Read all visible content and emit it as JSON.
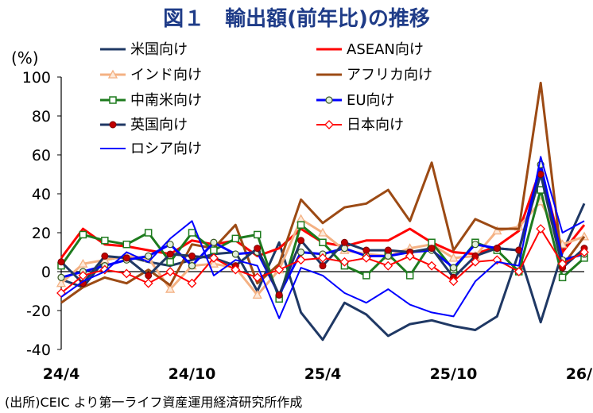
{
  "chart_data": {
    "type": "line",
    "title": "図１　輸出額(前年比)の推移",
    "ylabel": "(%)",
    "source": "(出所)CEIC より第一ライフ資産運用経済研究所作成",
    "ylim": [
      -40,
      100
    ],
    "yticks": [
      "-40",
      "-20",
      "0",
      "20",
      "40",
      "60",
      "80",
      "100"
    ],
    "grid": false,
    "legend_position": "top-left, three columns",
    "x": [
      "24/4",
      "24/5",
      "24/6",
      "24/7",
      "24/8",
      "24/9",
      "24/10",
      "24/11",
      "24/12",
      "25/1",
      "25/2",
      "25/3",
      "25/4",
      "25/5",
      "25/6",
      "25/7",
      "25/8",
      "25/9",
      "25/10",
      "25/11",
      "25/12",
      "26/1",
      "26/2",
      "26/3",
      "26/4"
    ],
    "x_ticks": [
      {
        "index": 0,
        "label": "24/4"
      },
      {
        "index": 6,
        "label": "24/10"
      },
      {
        "index": 12,
        "label": "25/4"
      },
      {
        "index": 18,
        "label": "25/10"
      },
      {
        "index": 24,
        "label": "26/4"
      }
    ],
    "series": [
      {
        "name": "米国向け",
        "color": "#1f3864",
        "marker": "none",
        "width": 3,
        "values": [
          -4,
          -8,
          6,
          8,
          5,
          3,
          6,
          9,
          10,
          -10,
          15,
          -21,
          -35,
          -16,
          -22,
          -33,
          -27,
          -25,
          -28,
          -30,
          -23,
          10,
          -26,
          10,
          35
        ]
      },
      {
        "name": "ASEAN向け",
        "color": "#ff0000",
        "marker": "none",
        "width": 3,
        "values": [
          7,
          22,
          14,
          13,
          11,
          9,
          16,
          14,
          16,
          8,
          12,
          22,
          15,
          13,
          16,
          16,
          22,
          15,
          10,
          9,
          13,
          21,
          53,
          10,
          24
        ]
      },
      {
        "name": "インド向け",
        "color": "#f4b183",
        "marker": "triangle",
        "width": 3,
        "values": [
          -6,
          4,
          6,
          8,
          7,
          -9,
          3,
          4,
          2,
          -12,
          1,
          27,
          20,
          11,
          9,
          8,
          12,
          14,
          7,
          8,
          21,
          23,
          36,
          14,
          18
        ]
      },
      {
        "name": "アフリカ向け",
        "color": "#9c4a14",
        "marker": "none",
        "width": 3,
        "values": [
          -16,
          -8,
          -3,
          -6,
          1,
          -7,
          14,
          12,
          24,
          -6,
          4,
          37,
          25,
          33,
          35,
          42,
          26,
          56,
          11,
          27,
          22,
          22,
          97,
          3,
          18
        ]
      },
      {
        "name": "中南米向け",
        "color": "#1e7b1e",
        "marker": "square",
        "width": 3,
        "values": [
          3,
          19,
          16,
          14,
          20,
          5,
          20,
          11,
          17,
          19,
          -14,
          24,
          15,
          3,
          -2,
          9,
          -2,
          15,
          1,
          15,
          11,
          0,
          42,
          -3,
          7
        ]
      },
      {
        "name": "EU向け",
        "color": "#0000ff",
        "marker": "circle-light",
        "width": 3,
        "values": [
          -3,
          0,
          3,
          6,
          8,
          14,
          3,
          15,
          9,
          10,
          -12,
          10,
          9,
          12,
          8,
          8,
          10,
          11,
          2,
          14,
          12,
          11,
          55,
          6,
          9
        ]
      },
      {
        "name": "英国向け",
        "color": "#203864",
        "marker": "circle-red",
        "width": 3,
        "values": [
          5,
          -6,
          8,
          7,
          -2,
          9,
          8,
          7,
          3,
          12,
          -12,
          16,
          3,
          15,
          11,
          11,
          10,
          12,
          -3,
          8,
          12,
          11,
          50,
          2,
          12
        ]
      },
      {
        "name": "日本向け",
        "color": "#ff0000",
        "marker": "diamond",
        "width": 2,
        "values": [
          -11,
          -2,
          1,
          -1,
          -6,
          0,
          -6,
          7,
          1,
          -3,
          1,
          6,
          7,
          5,
          7,
          3,
          8,
          3,
          -5,
          5,
          6,
          0,
          22,
          4,
          10
        ]
      },
      {
        "name": "ロシア向け",
        "color": "#0000ff",
        "marker": "none",
        "width": 2,
        "values": [
          -13,
          -5,
          0,
          10,
          5,
          17,
          26,
          -2,
          6,
          3,
          -24,
          2,
          -2,
          -11,
          -16,
          -9,
          -17,
          -21,
          -23,
          -5,
          5,
          3,
          59,
          20,
          26
        ]
      }
    ]
  }
}
